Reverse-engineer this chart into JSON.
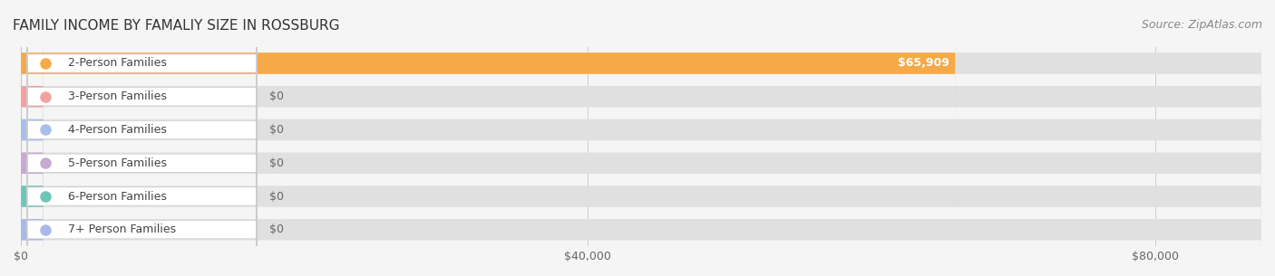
{
  "title": "FAMILY INCOME BY FAMALIY SIZE IN ROSSBURG",
  "source": "Source: ZipAtlas.com",
  "categories": [
    "2-Person Families",
    "3-Person Families",
    "4-Person Families",
    "5-Person Families",
    "6-Person Families",
    "7+ Person Families"
  ],
  "values": [
    65909,
    0,
    0,
    0,
    0,
    0
  ],
  "bar_colors": [
    "#F5A947",
    "#F4A0A0",
    "#A8BFE8",
    "#C9A8D4",
    "#6DC5B8",
    "#A8B8E8"
  ],
  "label_colors": [
    "#F5A947",
    "#F4A0A0",
    "#A8BFE8",
    "#C9A8D4",
    "#6DC5B8",
    "#A8B8E8"
  ],
  "value_labels": [
    "$65,909",
    "$0",
    "$0",
    "$0",
    "$0",
    "$0"
  ],
  "xlim": [
    0,
    87500
  ],
  "xticks": [
    0,
    40000,
    80000
  ],
  "xtick_labels": [
    "$0",
    "$40,000",
    "$80,000"
  ],
  "background_color": "#f5f5f5",
  "bar_background_color": "#e8e8e8",
  "title_fontsize": 11,
  "source_fontsize": 9,
  "label_fontsize": 9,
  "value_fontsize": 9,
  "bar_height": 0.62
}
